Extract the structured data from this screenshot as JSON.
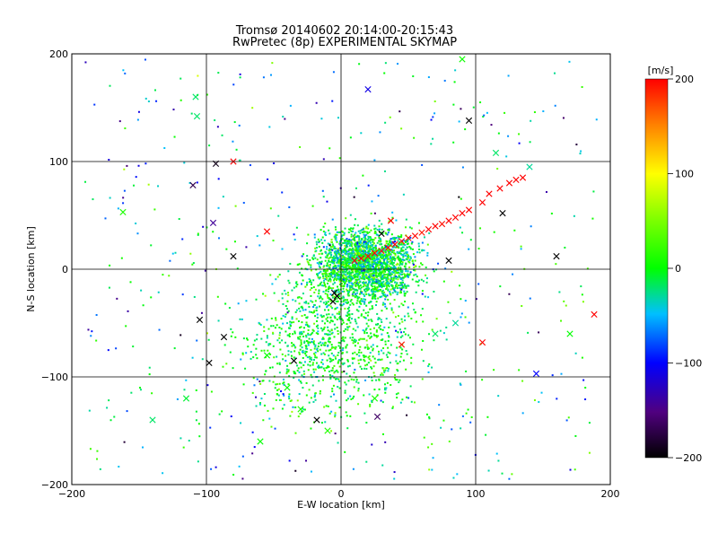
{
  "chart_data": {
    "type": "scatter",
    "title": "Tromsø 20140602 20:14:00-20:15:43",
    "subtitle": "RwPretec (8p) EXPERIMENTAL SKYMAP",
    "xlabel": "E-W location [km]",
    "ylabel": "N-S location [km]",
    "xlim": [
      -200,
      200
    ],
    "ylim": [
      -200,
      200
    ],
    "xticks": [
      -200,
      -100,
      0,
      100,
      200
    ],
    "yticks": [
      -200,
      -100,
      0,
      100,
      200
    ],
    "grid": true,
    "colorbar": {
      "unit_label": "[m/s]",
      "min": -200,
      "max": 200,
      "ticks": [
        200,
        100,
        0,
        -100,
        -200
      ]
    },
    "marker_note": "crosses and dots colour-coded by velocity",
    "points": [
      {
        "x": 10,
        "y": 8,
        "v": 200,
        "m": "x"
      },
      {
        "x": 15,
        "y": 10,
        "v": 200,
        "m": "x"
      },
      {
        "x": 20,
        "y": 12,
        "v": 195,
        "m": "x"
      },
      {
        "x": 25,
        "y": 15,
        "v": 200,
        "m": "x"
      },
      {
        "x": 30,
        "y": 17,
        "v": 190,
        "m": "x"
      },
      {
        "x": 35,
        "y": 20,
        "v": 200,
        "m": "x"
      },
      {
        "x": 40,
        "y": 23,
        "v": 200,
        "m": "x"
      },
      {
        "x": 45,
        "y": 26,
        "v": 195,
        "m": "x"
      },
      {
        "x": 50,
        "y": 29,
        "v": 200,
        "m": "x"
      },
      {
        "x": 55,
        "y": 31,
        "v": 200,
        "m": "x"
      },
      {
        "x": 60,
        "y": 34,
        "v": 190,
        "m": "x"
      },
      {
        "x": 65,
        "y": 37,
        "v": 200,
        "m": "x"
      },
      {
        "x": 70,
        "y": 40,
        "v": 200,
        "m": "x"
      },
      {
        "x": 75,
        "y": 42,
        "v": 195,
        "m": "x"
      },
      {
        "x": 80,
        "y": 45,
        "v": 200,
        "m": "x"
      },
      {
        "x": 85,
        "y": 48,
        "v": 200,
        "m": "x"
      },
      {
        "x": 90,
        "y": 52,
        "v": 200,
        "m": "x"
      },
      {
        "x": 95,
        "y": 55,
        "v": 200,
        "m": "x"
      },
      {
        "x": 105,
        "y": 62,
        "v": 200,
        "m": "x"
      },
      {
        "x": 110,
        "y": 70,
        "v": 200,
        "m": "x"
      },
      {
        "x": 118,
        "y": 75,
        "v": 200,
        "m": "x"
      },
      {
        "x": 125,
        "y": 80,
        "v": 200,
        "m": "x"
      },
      {
        "x": 130,
        "y": 83,
        "v": 200,
        "m": "x"
      },
      {
        "x": 135,
        "y": 85,
        "v": 200,
        "m": "x"
      },
      {
        "x": 188,
        "y": -42,
        "v": 200,
        "m": "x"
      },
      {
        "x": -80,
        "y": 100,
        "v": 200,
        "m": "x"
      },
      {
        "x": -55,
        "y": 35,
        "v": 200,
        "m": "x"
      },
      {
        "x": 45,
        "y": -70,
        "v": 190,
        "m": "x"
      },
      {
        "x": 105,
        "y": -68,
        "v": 200,
        "m": "x"
      },
      {
        "x": 37,
        "y": 45,
        "v": 200,
        "m": "x"
      },
      {
        "x": -110,
        "y": 78,
        "v": -170,
        "m": "x"
      },
      {
        "x": -93,
        "y": 98,
        "v": -190,
        "m": "x"
      },
      {
        "x": -95,
        "y": 43,
        "v": -140,
        "m": "x"
      },
      {
        "x": -105,
        "y": -47,
        "v": -200,
        "m": "x"
      },
      {
        "x": -98,
        "y": -87,
        "v": -200,
        "m": "x"
      },
      {
        "x": -87,
        "y": -63,
        "v": -200,
        "m": "x"
      },
      {
        "x": -80,
        "y": 12,
        "v": -200,
        "m": "x"
      },
      {
        "x": -5,
        "y": -22,
        "v": -200,
        "m": "x"
      },
      {
        "x": -3,
        "y": -25,
        "v": -200,
        "m": "x"
      },
      {
        "x": -6,
        "y": -30,
        "v": -200,
        "m": "x"
      },
      {
        "x": 30,
        "y": 33,
        "v": -200,
        "m": "x"
      },
      {
        "x": 80,
        "y": 8,
        "v": -200,
        "m": "x"
      },
      {
        "x": 95,
        "y": 138,
        "v": -200,
        "m": "x"
      },
      {
        "x": 120,
        "y": 52,
        "v": -200,
        "m": "x"
      },
      {
        "x": 160,
        "y": 12,
        "v": -200,
        "m": "x"
      },
      {
        "x": -18,
        "y": -140,
        "v": -200,
        "m": "x"
      },
      {
        "x": -35,
        "y": -85,
        "v": -200,
        "m": "x"
      },
      {
        "x": 20,
        "y": 167,
        "v": -110,
        "m": "x"
      },
      {
        "x": 145,
        "y": -97,
        "v": -100,
        "m": "x"
      },
      {
        "x": 27,
        "y": -137,
        "v": -160,
        "m": "x"
      },
      {
        "x": -108,
        "y": 160,
        "v": -20,
        "m": "x"
      },
      {
        "x": -107,
        "y": 142,
        "v": -20,
        "m": "x"
      },
      {
        "x": -162,
        "y": 53,
        "v": 10,
        "m": "x"
      },
      {
        "x": 90,
        "y": 195,
        "v": 5,
        "m": "x"
      },
      {
        "x": 170,
        "y": -60,
        "v": 0,
        "m": "x"
      },
      {
        "x": -140,
        "y": -140,
        "v": -20,
        "m": "x"
      },
      {
        "x": -115,
        "y": -120,
        "v": -10,
        "m": "x"
      },
      {
        "x": 115,
        "y": 108,
        "v": -20,
        "m": "x"
      },
      {
        "x": 140,
        "y": 95,
        "v": -30,
        "m": "x"
      },
      {
        "x": 85,
        "y": -50,
        "v": -30,
        "m": "x"
      },
      {
        "x": 70,
        "y": -60,
        "v": -20,
        "m": "x"
      },
      {
        "x": -40,
        "y": -110,
        "v": 0,
        "m": "x"
      },
      {
        "x": -30,
        "y": -130,
        "v": 10,
        "m": "x"
      },
      {
        "x": -60,
        "y": -160,
        "v": 0,
        "m": "x"
      },
      {
        "x": -10,
        "y": -150,
        "v": 15,
        "m": "x"
      },
      {
        "x": -55,
        "y": -80,
        "v": 0,
        "m": "x"
      },
      {
        "x": 25,
        "y": -120,
        "v": 10,
        "m": "x"
      }
    ]
  }
}
